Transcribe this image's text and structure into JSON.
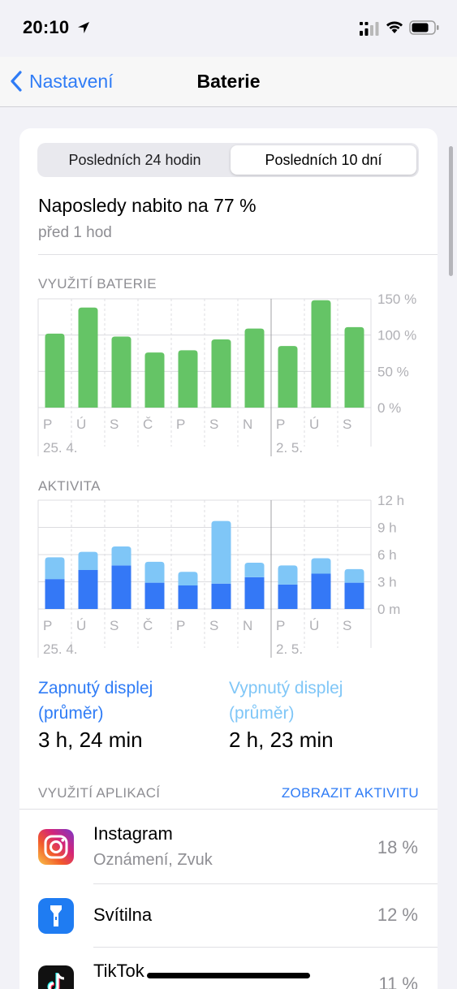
{
  "status_bar": {
    "time": "20:10"
  },
  "nav": {
    "back_label": "Nastavení",
    "title": "Baterie"
  },
  "segments": {
    "first": "Posledních 24 hodin",
    "second": "Posledních 10 dní",
    "selected": "second"
  },
  "last_charge": {
    "title": "Naposledy nabito na 77 %",
    "subtitle": "před 1 hod"
  },
  "colors": {
    "accent": "#2f7cf6",
    "battery_green": "#65c466",
    "screen_on": "#3478f6",
    "screen_off": "#7fc6f7"
  },
  "chart_data": [
    {
      "type": "bar",
      "title": "VYUŽITÍ BATERIE",
      "categories": [
        "P",
        "Ú",
        "S",
        "Č",
        "P",
        "S",
        "N",
        "P",
        "Ú",
        "S"
      ],
      "date_labels": [
        {
          "index": 0,
          "label": "25. 4."
        },
        {
          "index": 7,
          "label": "2. 5."
        }
      ],
      "series": [
        {
          "values": [
            102,
            138,
            98,
            76,
            79,
            94,
            109,
            85,
            148,
            111
          ]
        }
      ],
      "y_ticks": [
        "150 %",
        "100 %",
        "50 %",
        "0 %"
      ],
      "ylim": [
        0,
        150
      ],
      "grid": true
    },
    {
      "type": "bar",
      "stacked": true,
      "title": "AKTIVITA",
      "categories": [
        "P",
        "Ú",
        "S",
        "Č",
        "P",
        "S",
        "N",
        "P",
        "Ú",
        "S"
      ],
      "date_labels": [
        {
          "index": 0,
          "label": "25. 4."
        },
        {
          "index": 7,
          "label": "2. 5."
        }
      ],
      "series": [
        {
          "values": [
            3.3,
            4.3,
            4.8,
            2.9,
            2.6,
            2.8,
            3.5,
            2.7,
            3.9,
            2.9
          ]
        },
        {
          "values": [
            2.4,
            2.0,
            2.1,
            2.3,
            1.5,
            6.9,
            1.6,
            2.1,
            1.7,
            1.5
          ]
        }
      ],
      "y_ticks": [
        "12 h",
        "9 h",
        "6 h",
        "3 h",
        "0 m"
      ],
      "ylim": [
        0,
        12
      ],
      "grid": true
    }
  ],
  "stats": {
    "screen_on_label": "Zapnutý displej (průměr)",
    "screen_on_line1": "Zapnutý displej",
    "screen_on_line2": "(průměr)",
    "screen_on_value": "3 h, 24 min",
    "screen_off_line1": "Vypnutý displej",
    "screen_off_line2": "(průměr)",
    "screen_off_value": "2 h, 23 min"
  },
  "apps": {
    "label": "VYUŽITÍ APLIKACÍ",
    "link": "ZOBRAZIT AKTIVITU",
    "items": [
      {
        "name": "Instagram",
        "subtitle": "Oznámení, Zvuk",
        "percent": "18 %",
        "icon": "instagram-icon"
      },
      {
        "name": "Svítilna",
        "subtitle": "",
        "percent": "12 %",
        "icon": "flashlight-icon"
      },
      {
        "name": "TikTok",
        "subtitle": "",
        "percent": "11 %",
        "icon": "tiktok-icon"
      }
    ]
  }
}
